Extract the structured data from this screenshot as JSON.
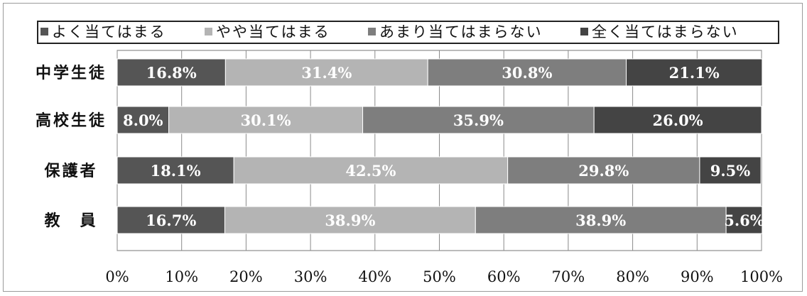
{
  "chart_data": {
    "type": "bar",
    "orientation": "horizontal",
    "stacked": "percent",
    "categories": [
      "中学生徒",
      "高校生徒",
      "保護者",
      "教　員"
    ],
    "series": [
      {
        "name": "よく当てはまる",
        "color": "#555555",
        "values": [
          16.8,
          8.0,
          18.1,
          16.7
        ],
        "labels": [
          "16.8%",
          "8.0%",
          "18.1%",
          "16.7%"
        ]
      },
      {
        "name": "やや当てはまる",
        "color": "#b4b4b4",
        "values": [
          31.4,
          30.1,
          42.5,
          38.9
        ],
        "labels": [
          "31.4%",
          "30.1%",
          "42.5%",
          "38.9%"
        ]
      },
      {
        "name": "あまり当てはまらない",
        "color": "#7e7e7e",
        "values": [
          30.8,
          35.9,
          29.8,
          38.9
        ],
        "labels": [
          "30.8%",
          "35.9%",
          "29.8%",
          "38.9%"
        ]
      },
      {
        "name": "全く当てはまらない",
        "color": "#444444",
        "values": [
          21.1,
          26.0,
          9.5,
          5.6
        ],
        "labels": [
          "21.1%",
          "26.0%",
          "9.5%",
          "5.6%"
        ]
      }
    ],
    "x_ticks": [
      "0%",
      "10%",
      "20%",
      "30%",
      "40%",
      "50%",
      "60%",
      "70%",
      "80%",
      "90%",
      "100%"
    ],
    "xlim": [
      0,
      100
    ],
    "grid": true,
    "legend_position": "top"
  }
}
